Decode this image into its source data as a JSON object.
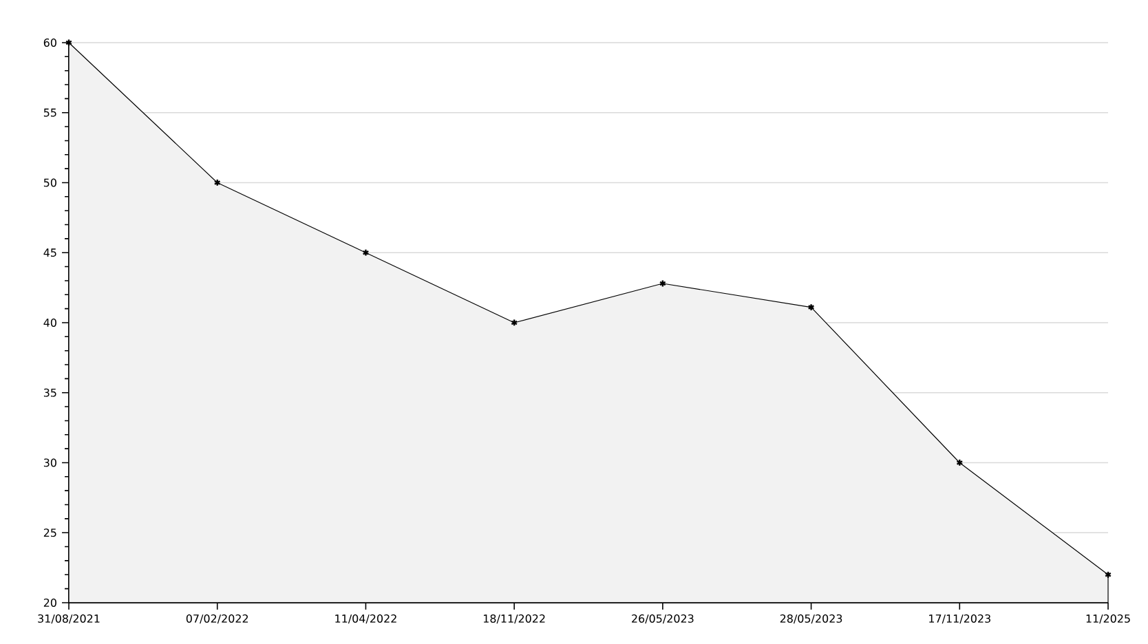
{
  "chart_data": {
    "type": "area",
    "categories": [
      "31/08/2021",
      "07/02/2022",
      "11/04/2022",
      "18/11/2022",
      "26/05/2023",
      "28/05/2023",
      "17/11/2023",
      "11/2025"
    ],
    "values": [
      60,
      50,
      45,
      40,
      42.8,
      41.1,
      30,
      22
    ],
    "color": "#f2f2f2",
    "ylim": [
      20,
      60
    ],
    "yticks": [
      20,
      25,
      30,
      35,
      40,
      45,
      50,
      55,
      60
    ],
    "grid": "y",
    "marker": "cross",
    "line_style": "solid"
  }
}
